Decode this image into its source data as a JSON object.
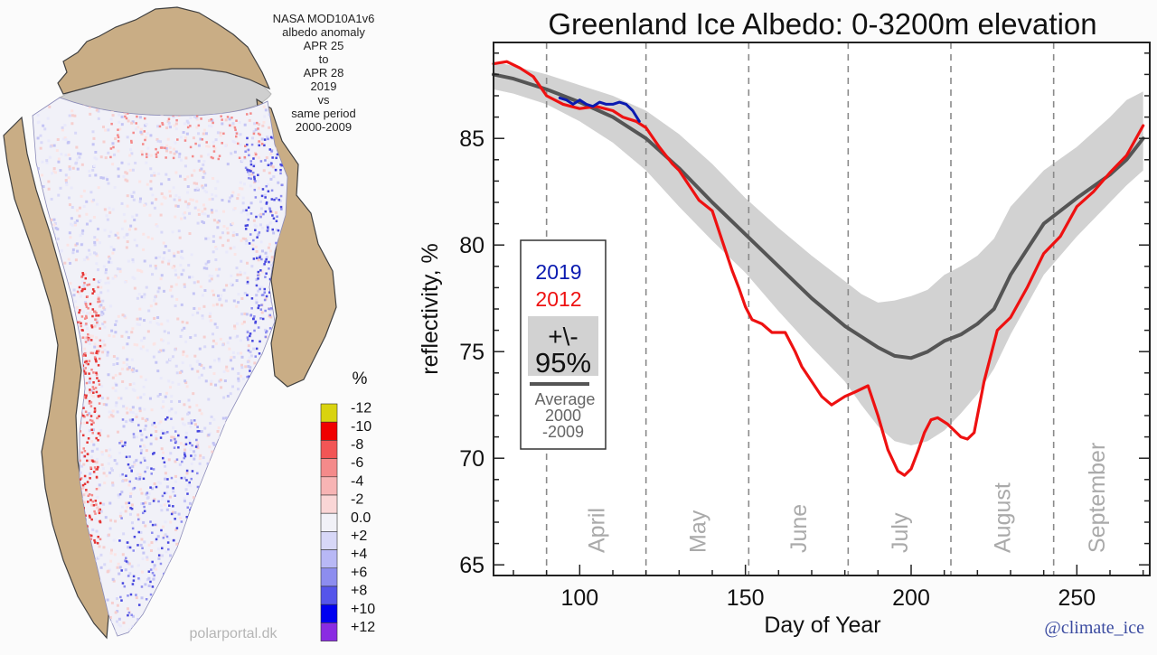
{
  "map_panel": {
    "header_lines": [
      "NASA MOD10A1v6",
      "albedo anomaly",
      "APR 25",
      "to",
      "APR 28",
      "2019",
      "vs",
      "same period",
      "2000-2009"
    ],
    "colorbar": {
      "unit": "%",
      "labels": [
        "-12",
        "-10",
        "-8",
        "-6",
        "-4",
        "-2",
        "0.0",
        "+2",
        "+4",
        "+6",
        "+8",
        "+10",
        "+12"
      ],
      "colors": [
        "#d9d30f",
        "#f00000",
        "#f25555",
        "#f48a8a",
        "#f7b4b4",
        "#fad6d6",
        "#f1f1f7",
        "#d7d7f7",
        "#b8b8f5",
        "#8d8def",
        "#5555ea",
        "#0000f0",
        "#8a2be2"
      ]
    },
    "credit": "polarportal.dk",
    "colors": {
      "ice": "#f1f1f8",
      "land": "#c9ad85",
      "outline": "#404040",
      "no_data": "#cfcfcf",
      "melt": "#e53535",
      "gain": "#4646de"
    }
  },
  "chart_data": {
    "type": "line",
    "title": "Greenland Ice Albedo: 0-3200m elevation",
    "xlabel": "Day of Year",
    "ylabel": "reflectivity, %",
    "xlim": [
      74,
      272
    ],
    "ylim": [
      64.5,
      89.5
    ],
    "xticks": [
      100,
      150,
      200,
      250
    ],
    "yticks": [
      65,
      70,
      75,
      80,
      85
    ],
    "month_boundaries": [
      90,
      120,
      151,
      181,
      212,
      243
    ],
    "months": [
      {
        "name": "April",
        "day": 105
      },
      {
        "name": "May",
        "day": 135.5
      },
      {
        "name": "June",
        "day": 166
      },
      {
        "name": "July",
        "day": 196.5
      },
      {
        "name": "August",
        "day": 227.5
      },
      {
        "name": "September",
        "day": 256
      }
    ],
    "series": [
      {
        "name": "Average 2000-2009",
        "color": "#555555",
        "x": [
          74,
          80,
          90,
          100,
          110,
          120,
          130,
          140,
          150,
          160,
          170,
          180,
          190,
          195,
          200,
          205,
          210,
          215,
          220,
          225,
          230,
          240,
          250,
          260,
          265,
          270
        ],
        "y": [
          88.0,
          87.8,
          87.3,
          86.7,
          86.0,
          85.0,
          83.6,
          82.0,
          80.5,
          79.0,
          77.5,
          76.2,
          75.2,
          74.8,
          74.7,
          75.0,
          75.5,
          75.8,
          76.3,
          77.0,
          78.6,
          81.0,
          82.2,
          83.3,
          84.0,
          85.0
        ]
      },
      {
        "name": "2012",
        "color": "#ee1111",
        "x": [
          74,
          78,
          82,
          86,
          90,
          95,
          100,
          105,
          110,
          113,
          117,
          120,
          124,
          128,
          130,
          133,
          136,
          140,
          143,
          146,
          148,
          150,
          152,
          155,
          158,
          162,
          165,
          167,
          170,
          173,
          176,
          180,
          183,
          187,
          190,
          193,
          196,
          198,
          200,
          202,
          204,
          206,
          208,
          211,
          213,
          215,
          217,
          219,
          222,
          226,
          230,
          235,
          240,
          245,
          250,
          255,
          260,
          265,
          270
        ],
        "y": [
          88.5,
          88.6,
          88.3,
          87.9,
          87.0,
          86.6,
          86.4,
          86.5,
          86.3,
          86.0,
          85.8,
          85.5,
          84.6,
          83.8,
          83.5,
          82.8,
          82.1,
          81.6,
          80.2,
          78.8,
          78.0,
          77.1,
          76.5,
          76.3,
          75.9,
          75.9,
          75.0,
          74.3,
          73.6,
          72.9,
          72.5,
          72.9,
          73.1,
          73.4,
          72.0,
          70.4,
          69.4,
          69.2,
          69.5,
          70.3,
          71.2,
          71.8,
          71.9,
          71.6,
          71.3,
          71.0,
          70.9,
          71.2,
          73.6,
          76.0,
          76.6,
          78.0,
          79.6,
          80.4,
          81.8,
          82.5,
          83.4,
          84.2,
          85.6
        ]
      },
      {
        "name": "2019",
        "color": "#0a1ab0",
        "x": [
          94,
          96,
          98,
          100,
          102,
          104,
          106,
          108,
          110,
          112,
          114,
          116,
          118
        ],
        "y": [
          86.9,
          86.8,
          86.6,
          86.8,
          86.6,
          86.5,
          86.7,
          86.6,
          86.6,
          86.7,
          86.6,
          86.3,
          85.8
        ]
      }
    ],
    "band": {
      "name": "+\\- 95%",
      "color": "#d2d2d2",
      "x": [
        74,
        80,
        90,
        100,
        110,
        120,
        130,
        140,
        150,
        160,
        170,
        180,
        185,
        190,
        195,
        200,
        205,
        210,
        215,
        220,
        225,
        230,
        240,
        250,
        260,
        265,
        270
      ],
      "upper": [
        88.6,
        88.4,
        88.0,
        87.5,
        87.0,
        86.3,
        85.2,
        83.8,
        82.2,
        80.8,
        79.5,
        78.3,
        77.7,
        77.3,
        77.4,
        77.6,
        77.9,
        78.6,
        79.0,
        79.5,
        80.3,
        81.8,
        83.5,
        84.6,
        86.0,
        86.8,
        87.2
      ],
      "lower": [
        87.3,
        87.1,
        86.6,
        85.8,
        84.8,
        83.5,
        81.8,
        80.2,
        78.7,
        76.9,
        75.2,
        73.6,
        72.5,
        71.5,
        70.8,
        70.6,
        70.8,
        71.3,
        72.1,
        73.0,
        74.2,
        75.8,
        78.6,
        80.4,
        82.0,
        82.8,
        83.5
      ]
    },
    "legend": {
      "y2019": "2019",
      "y2012": "2012",
      "band": [
        "+\\-",
        "95%"
      ],
      "avg": [
        "Average",
        "2000",
        "-2009"
      ]
    }
  },
  "credit_twitter": "@climate_ice"
}
